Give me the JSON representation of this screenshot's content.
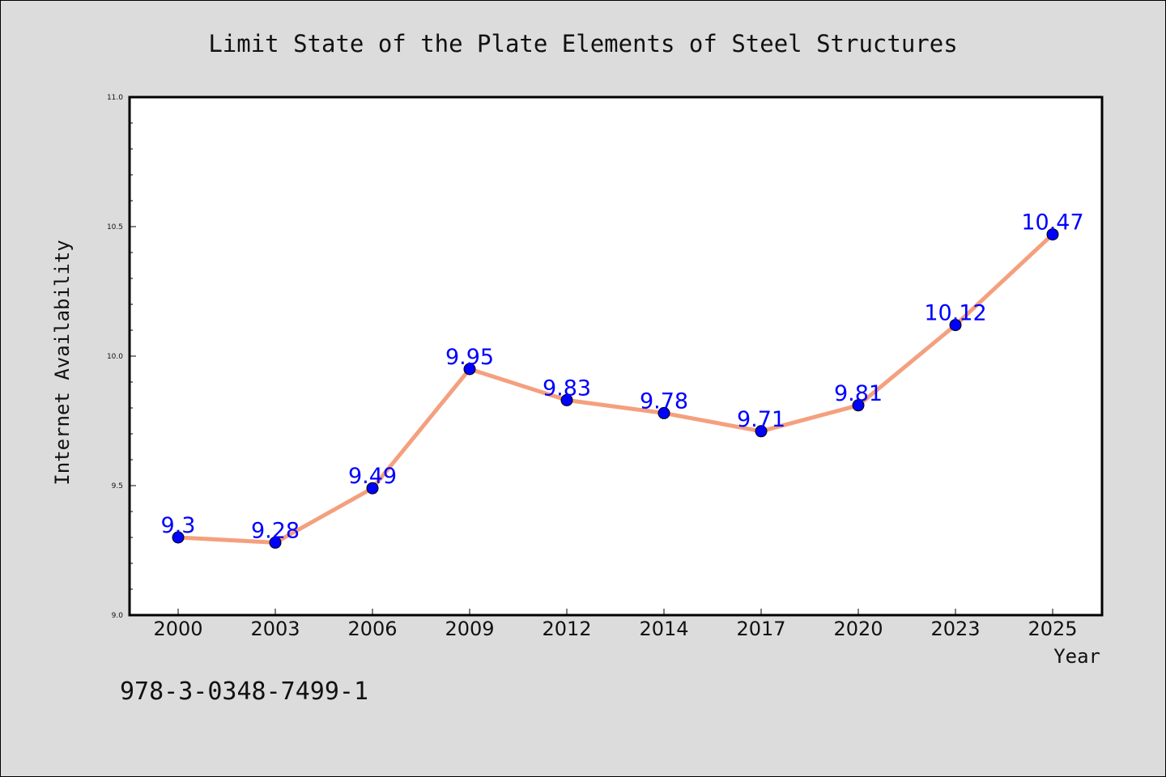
{
  "chart_data": {
    "type": "line",
    "title": "Limit State of the Plate Elements of Steel Structures",
    "xlabel": "Year",
    "ylabel": "Internet Availability",
    "categories": [
      "2000",
      "2003",
      "2006",
      "2009",
      "2012",
      "2014",
      "2017",
      "2020",
      "2023",
      "2025"
    ],
    "series": [
      {
        "values": [
          9.3,
          9.28,
          9.49,
          9.95,
          9.83,
          9.78,
          9.71,
          9.81,
          10.12,
          10.47
        ],
        "labels": [
          "9.3",
          "9.28",
          "9.49",
          "9.95",
          "9.83",
          "9.78",
          "9.71",
          "9.81",
          "10.12",
          "10.47"
        ],
        "line_color": "#f4a07e",
        "marker_color": "#0000ff",
        "label_color": "#0000ff"
      }
    ],
    "ylim": [
      9.0,
      11.0
    ],
    "yticks": [
      "9.0",
      "9.5",
      "10.0",
      "10.5",
      "11.0"
    ],
    "grid": false,
    "legend": "none"
  },
  "footer": {
    "isbn": "978-3-0348-7499-1"
  }
}
